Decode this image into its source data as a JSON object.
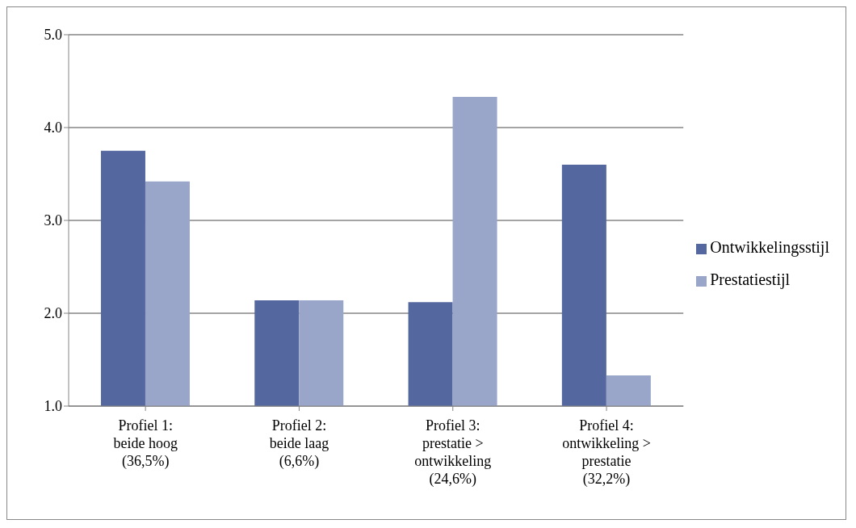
{
  "chart_data": {
    "type": "bar",
    "categories": [
      "Profiel 1:\nbeide hoog\n(36,5%)",
      "Profiel 2:\nbeide laag\n(6,6%)",
      "Profiel 3:\nprestatie >\nontwikkeling\n(24,6%)",
      "Profiel 4:\nontwikkeling >\nprestatie\n(32,2%)"
    ],
    "series": [
      {
        "name": "Ontwikkelingsstijl",
        "color": "#55679f",
        "values": [
          3.75,
          2.14,
          2.12,
          3.6
        ]
      },
      {
        "name": "Prestatiestijl",
        "color": "#99a6c9",
        "values": [
          3.42,
          2.14,
          4.33,
          1.33
        ]
      }
    ],
    "ylim": [
      1,
      5
    ],
    "yticks": [
      {
        "value": 1,
        "label": "1.0"
      },
      {
        "value": 2,
        "label": "2.0"
      },
      {
        "value": 3,
        "label": "3.0"
      },
      {
        "value": 4,
        "label": "4.0"
      },
      {
        "value": 5,
        "label": "5.0"
      }
    ],
    "grid": "y",
    "legend": "right"
  }
}
